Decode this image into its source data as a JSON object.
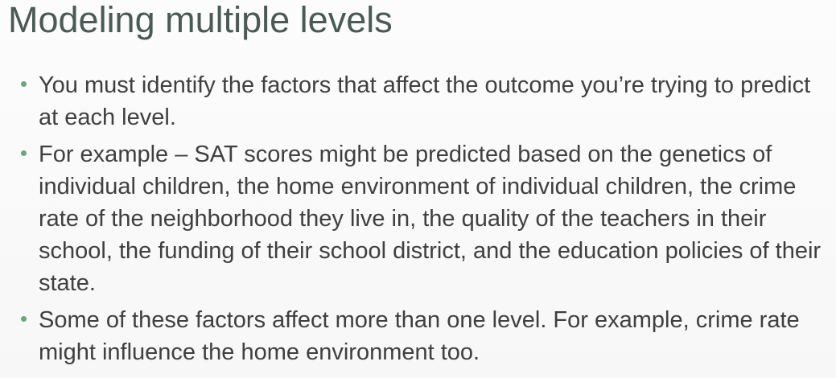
{
  "slide": {
    "title": "Modeling multiple levels",
    "colors": {
      "title": "#4a5a54",
      "text": "#3f3f3f",
      "bullet": "#6aa77a",
      "background": "#fbfbfb"
    },
    "bullets": [
      {
        "text": "You must identify the factors that affect the outcome you’re trying to predict at each level."
      },
      {
        "text": "For example – SAT scores might be predicted based on the genetics of individual children, the home environment of individual children, the crime rate of the neighborhood they live in, the quality of the teachers in their school, the funding of their school district, and the education policies of their state."
      },
      {
        "text": "Some of these factors affect more than one level. For example, crime rate might influence the home environment too."
      }
    ]
  }
}
